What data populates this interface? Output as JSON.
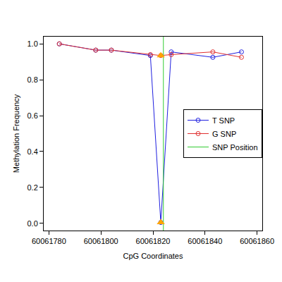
{
  "chart_data": {
    "type": "line",
    "x_label": "CpG Coordinates",
    "y_label": "Methylation Frequency",
    "x": [
      60061784,
      60061798,
      60061804,
      60061819,
      60061823,
      60061827,
      60061843,
      60061854
    ],
    "series": [
      {
        "name": "T SNP",
        "color": "#2020e0",
        "marker": "circle-open",
        "values": [
          1.0,
          0.965,
          0.965,
          0.935,
          0.005,
          0.955,
          0.925,
          0.955
        ]
      },
      {
        "name": "G SNP",
        "color": "#e03030",
        "marker": "circle-open",
        "values": [
          1.0,
          0.965,
          0.965,
          0.94,
          0.935,
          0.94,
          0.955,
          0.925
        ]
      },
      {
        "name": "SNP Position",
        "color": "#33cc33",
        "type": "vline",
        "x": [
          60061824
        ]
      },
      {
        "type": "scatter",
        "color": "#ffa500",
        "marker": "triangle-up",
        "x": [
          60061823,
          60061823
        ],
        "values": [
          0.935,
          0.005
        ]
      }
    ],
    "xlim": [
      60061778,
      60061862
    ],
    "xticks": [
      60061780,
      60061800,
      60061820,
      60061840,
      60061860
    ],
    "ylim": [
      -0.04,
      1.04
    ],
    "yticks": [
      {
        "value": 0,
        "label": "0.0"
      },
      0.2,
      0.4,
      0.6,
      0.8,
      {
        "value": 1,
        "label": "1.0"
      }
    ],
    "grid": false,
    "legend": "right"
  }
}
